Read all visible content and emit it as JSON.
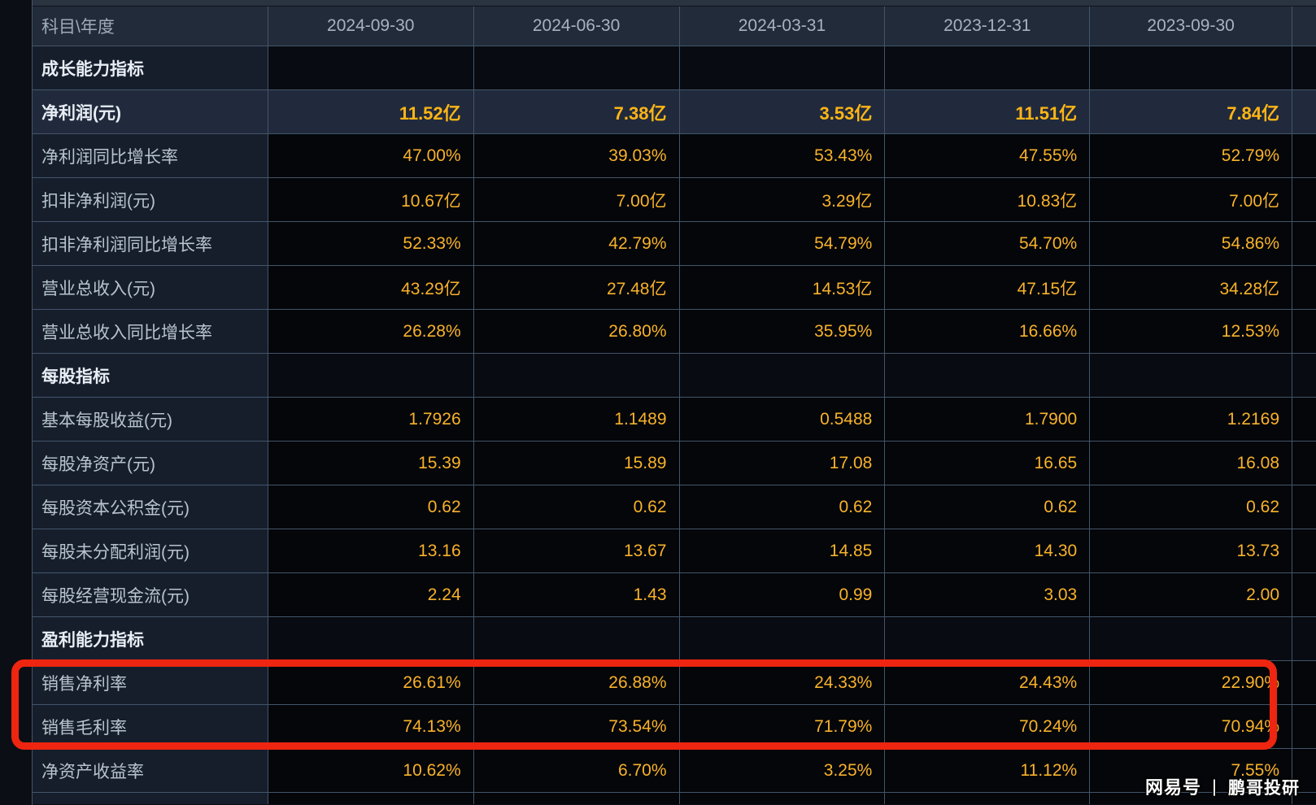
{
  "table": {
    "corner_label": "科目\\年度",
    "columns": [
      "2024-09-30",
      "2024-06-30",
      "2024-03-31",
      "2023-12-31",
      "2023-09-30"
    ],
    "rows": [
      {
        "type": "section",
        "label": "成长能力指标",
        "values": [
          "",
          "",
          "",
          "",
          ""
        ]
      },
      {
        "type": "highlight",
        "label": "净利润(元)",
        "values": [
          "11.52亿",
          "7.38亿",
          "3.53亿",
          "11.51亿",
          "7.84亿"
        ]
      },
      {
        "type": "data",
        "label": "净利润同比增长率",
        "values": [
          "47.00%",
          "39.03%",
          "53.43%",
          "47.55%",
          "52.79%"
        ]
      },
      {
        "type": "data",
        "label": "扣非净利润(元)",
        "values": [
          "10.67亿",
          "7.00亿",
          "3.29亿",
          "10.83亿",
          "7.00亿"
        ]
      },
      {
        "type": "data",
        "label": "扣非净利润同比增长率",
        "values": [
          "52.33%",
          "42.79%",
          "54.79%",
          "54.70%",
          "54.86%"
        ]
      },
      {
        "type": "data",
        "label": "营业总收入(元)",
        "values": [
          "43.29亿",
          "27.48亿",
          "14.53亿",
          "47.15亿",
          "34.28亿"
        ]
      },
      {
        "type": "data",
        "label": "营业总收入同比增长率",
        "values": [
          "26.28%",
          "26.80%",
          "35.95%",
          "16.66%",
          "12.53%"
        ]
      },
      {
        "type": "section",
        "label": "每股指标",
        "values": [
          "",
          "",
          "",
          "",
          ""
        ]
      },
      {
        "type": "data",
        "label": "基本每股收益(元)",
        "values": [
          "1.7926",
          "1.1489",
          "0.5488",
          "1.7900",
          "1.2169"
        ]
      },
      {
        "type": "data",
        "label": "每股净资产(元)",
        "values": [
          "15.39",
          "15.89",
          "17.08",
          "16.65",
          "16.08"
        ]
      },
      {
        "type": "data",
        "label": "每股资本公积金(元)",
        "values": [
          "0.62",
          "0.62",
          "0.62",
          "0.62",
          "0.62"
        ]
      },
      {
        "type": "data",
        "label": "每股未分配利润(元)",
        "values": [
          "13.16",
          "13.67",
          "14.85",
          "14.30",
          "13.73"
        ]
      },
      {
        "type": "data",
        "label": "每股经营现金流(元)",
        "values": [
          "2.24",
          "1.43",
          "0.99",
          "3.03",
          "2.00"
        ]
      },
      {
        "type": "section",
        "label": "盈利能力指标",
        "values": [
          "",
          "",
          "",
          "",
          ""
        ]
      },
      {
        "type": "data",
        "label": "销售净利率",
        "values": [
          "26.61%",
          "26.88%",
          "24.33%",
          "24.43%",
          "22.90%"
        ]
      },
      {
        "type": "data",
        "label": "销售毛利率",
        "values": [
          "74.13%",
          "73.54%",
          "71.79%",
          "70.24%",
          "70.94%"
        ]
      },
      {
        "type": "data",
        "label": "净资产收益率",
        "values": [
          "10.62%",
          "6.70%",
          "3.25%",
          "11.12%",
          "7.55%"
        ]
      }
    ]
  },
  "annotation": {
    "shape": "red-rounded-rectangle",
    "highlighted_rows": [
      "销售净利率",
      "销售毛利率"
    ],
    "color": "#ee2510"
  },
  "watermark": {
    "source": "网易号",
    "separator": "丨",
    "author": "鹏哥投研"
  },
  "colors": {
    "value_gold": "#f9b22a",
    "emphasis_gold": "#ffb516",
    "annotation_red": "#ee2510",
    "border": "#43556a",
    "header_bg": "#212b39",
    "label_bg": "#161e2c",
    "data_bg": "#040609",
    "highlight_row_bg": "#202a3c",
    "page_bg": "#0b0e14"
  }
}
